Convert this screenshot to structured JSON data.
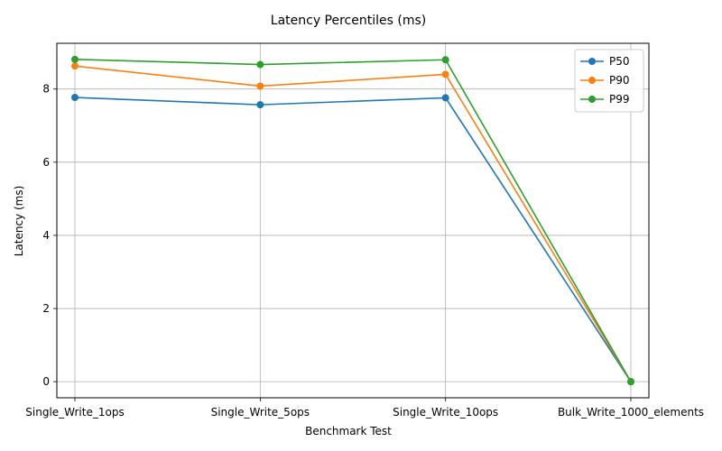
{
  "chart_data": {
    "type": "line",
    "title": "Latency Percentiles (ms)",
    "xlabel": "Benchmark Test",
    "ylabel": "Latency (ms)",
    "categories": [
      "Single_Write_1ops",
      "Single_Write_5ops",
      "Single_Write_10ops",
      "Bulk_Write_1000_elements"
    ],
    "series": [
      {
        "name": "P50",
        "color": "#1f77b4",
        "values": [
          7.77,
          7.57,
          7.76,
          0.0
        ]
      },
      {
        "name": "P90",
        "color": "#ff7f0e",
        "values": [
          8.63,
          8.08,
          8.4,
          0.0
        ]
      },
      {
        "name": "P99",
        "color": "#2ca02c",
        "values": [
          8.81,
          8.67,
          8.8,
          0.0
        ]
      }
    ],
    "ylim": [
      -0.44,
      9.25
    ],
    "yticks": [
      0,
      2,
      4,
      6,
      8
    ],
    "grid": true,
    "legend_position": "top-right"
  }
}
